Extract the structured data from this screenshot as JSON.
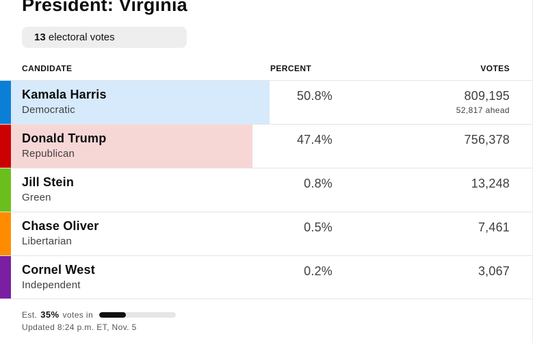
{
  "title": "President: Virginia",
  "electoral": {
    "count": "13",
    "label": "electoral votes"
  },
  "headers": {
    "candidate": "CANDIDATE",
    "percent": "PERCENT",
    "votes": "VOTES"
  },
  "candidates": [
    {
      "name": "Kamala Harris",
      "party": "Democratic",
      "percent": "50.8%",
      "votes": "809,195",
      "ahead": "52,817 ahead",
      "color": "#0b7fd6",
      "bar_color": "#d6eafb",
      "share": 50.8
    },
    {
      "name": "Donald Trump",
      "party": "Republican",
      "percent": "47.4%",
      "votes": "756,378",
      "color": "#cc0000",
      "bar_color": "#f7d6d6",
      "share": 47.4
    },
    {
      "name": "Jill Stein",
      "party": "Green",
      "percent": "0.8%",
      "votes": "13,248",
      "color": "#6bbf1c",
      "share": 0.8
    },
    {
      "name": "Chase Oliver",
      "party": "Libertarian",
      "percent": "0.5%",
      "votes": "7,461",
      "color": "#ff8c00",
      "share": 0.5
    },
    {
      "name": "Cornel West",
      "party": "Independent",
      "percent": "0.2%",
      "votes": "3,067",
      "color": "#7b1fa2",
      "share": 0.2
    }
  ],
  "footer": {
    "est_prefix": "Est.",
    "est_value": "35%",
    "est_suffix": "votes in",
    "est_fraction": 0.35,
    "updated": "Updated 8:24 p.m. ET, Nov. 5"
  }
}
